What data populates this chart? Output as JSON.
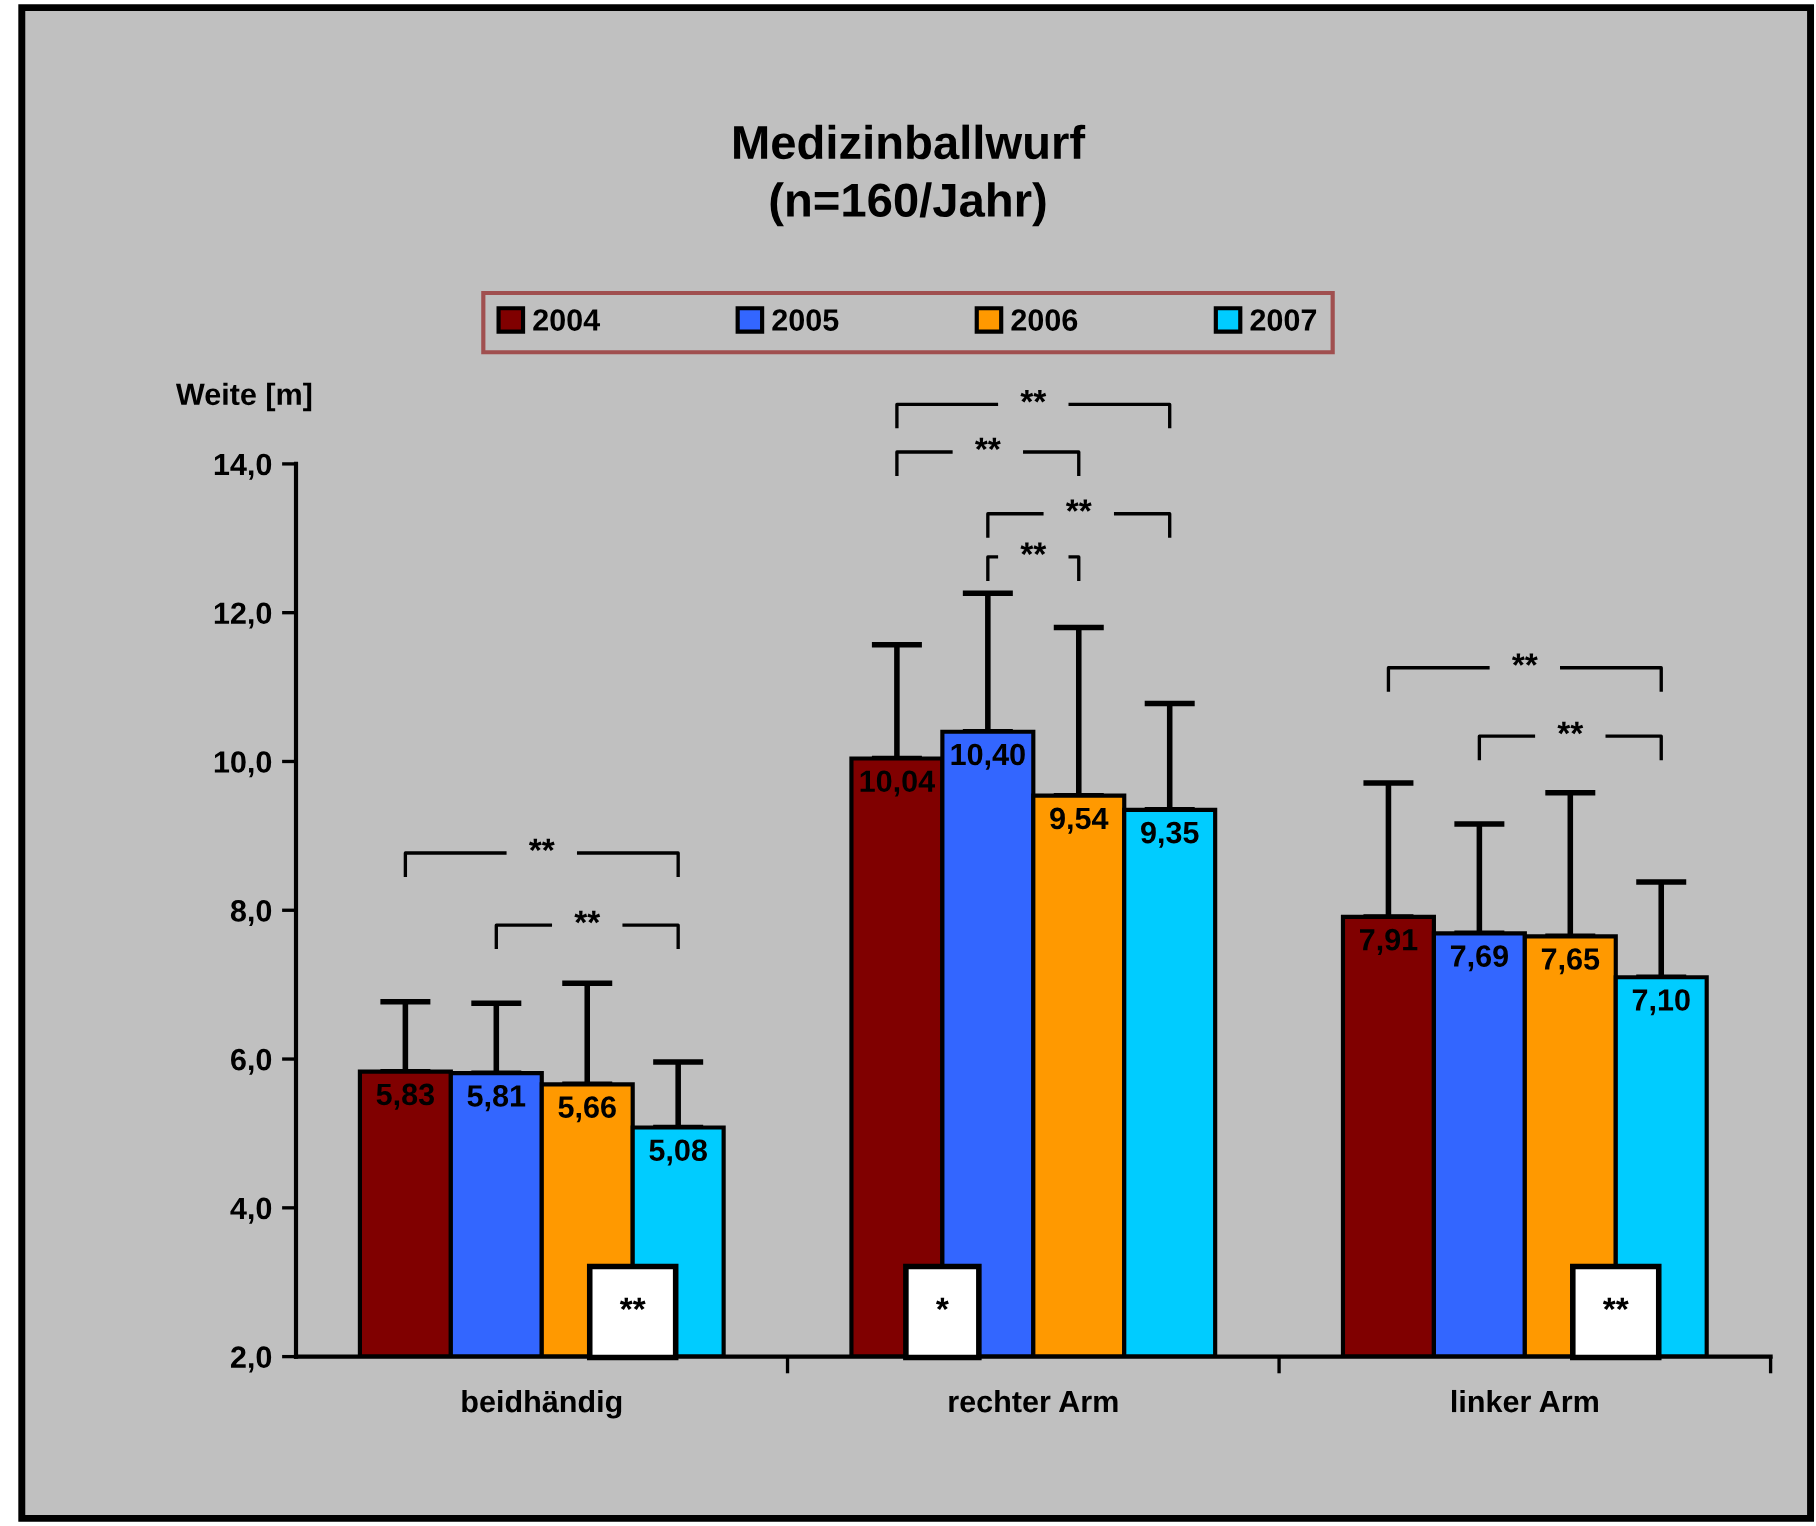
{
  "chart_data": {
    "type": "bar",
    "title": "Medizinballwurf\n(n=160/Jahr)",
    "ylabel": "Weite [m]",
    "categories": [
      "beidhändig",
      "rechter Arm",
      "linker Arm"
    ],
    "series": [
      {
        "name": "2004",
        "color": "#800000",
        "values": [
          5.83,
          10.04,
          7.91
        ],
        "value_labels": [
          "5,83",
          "10,04",
          "7,91"
        ],
        "errors": [
          [
            5.83,
            6.77
          ],
          [
            10.04,
            11.57
          ],
          [
            7.91,
            9.71
          ]
        ]
      },
      {
        "name": "2005",
        "color": "#3366ff",
        "values": [
          5.81,
          10.4,
          7.69
        ],
        "value_labels": [
          "5,81",
          "10,40",
          "7,69"
        ],
        "errors": [
          [
            5.81,
            6.75
          ],
          [
            10.4,
            12.26
          ],
          [
            7.69,
            9.16
          ]
        ]
      },
      {
        "name": "2006",
        "color": "#ff9900",
        "values": [
          5.66,
          9.54,
          7.65
        ],
        "value_labels": [
          "5,66",
          "9,54",
          "7,65"
        ],
        "errors": [
          [
            5.66,
            7.02
          ],
          [
            9.54,
            11.8
          ],
          [
            7.65,
            9.58
          ]
        ]
      },
      {
        "name": "2007",
        "color": "#00ccff",
        "values": [
          5.08,
          9.35,
          7.1
        ],
        "value_labels": [
          "5,08",
          "9,35",
          "7,10"
        ],
        "errors": [
          [
            5.08,
            5.96
          ],
          [
            9.35,
            10.78
          ],
          [
            7.1,
            8.38
          ]
        ]
      }
    ],
    "ylim": [
      2,
      14
    ],
    "yticks": [
      {
        "value": 2,
        "label": "2,0"
      },
      {
        "value": 4,
        "label": "4,0"
      },
      {
        "value": 6,
        "label": "6,0"
      },
      {
        "value": 8,
        "label": "8,0"
      },
      {
        "value": 10,
        "label": "10,0"
      },
      {
        "value": 12,
        "label": "12,0"
      },
      {
        "value": 14,
        "label": "14,0"
      }
    ],
    "grid": false,
    "legend": "top",
    "annotations": [
      "**",
      "**",
      "**",
      "**",
      "**",
      "**",
      "**",
      "**",
      {
        "text": "**",
        "x": "beidhändig",
        "y": 2.6
      },
      {
        "text": "*",
        "x": "rechter Arm",
        "y": 2.6
      },
      {
        "text": "**",
        "x": "linker Arm",
        "y": 2.6
      }
    ]
  }
}
